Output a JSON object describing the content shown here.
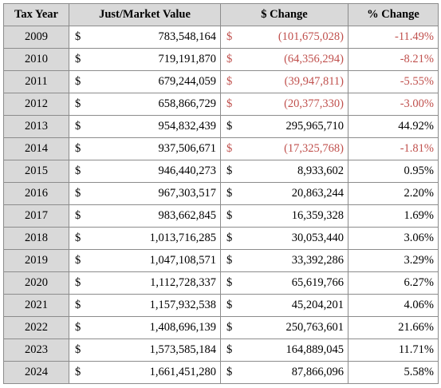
{
  "headers": {
    "year": "Tax Year",
    "value": "Just/Market Value",
    "change": "$ Change",
    "pct": "% Change"
  },
  "currency_symbol": "$",
  "colors": {
    "negative": "#c0504d",
    "header_bg": "#d9d9d9"
  },
  "rows": [
    {
      "year": "2009",
      "value": "783,548,164",
      "change": "(101,675,028)",
      "pct": "-11.49%",
      "negative": true
    },
    {
      "year": "2010",
      "value": "719,191,870",
      "change": "(64,356,294)",
      "pct": "-8.21%",
      "negative": true
    },
    {
      "year": "2011",
      "value": "679,244,059",
      "change": "(39,947,811)",
      "pct": "-5.55%",
      "negative": true
    },
    {
      "year": "2012",
      "value": "658,866,729",
      "change": "(20,377,330)",
      "pct": "-3.00%",
      "negative": true
    },
    {
      "year": "2013",
      "value": "954,832,439",
      "change": "295,965,710",
      "pct": "44.92%",
      "negative": false
    },
    {
      "year": "2014",
      "value": "937,506,671",
      "change": "(17,325,768)",
      "pct": "-1.81%",
      "negative": true
    },
    {
      "year": "2015",
      "value": "946,440,273",
      "change": "8,933,602",
      "pct": "0.95%",
      "negative": false
    },
    {
      "year": "2016",
      "value": "967,303,517",
      "change": "20,863,244",
      "pct": "2.20%",
      "negative": false
    },
    {
      "year": "2017",
      "value": "983,662,845",
      "change": "16,359,328",
      "pct": "1.69%",
      "negative": false
    },
    {
      "year": "2018",
      "value": "1,013,716,285",
      "change": "30,053,440",
      "pct": "3.06%",
      "negative": false
    },
    {
      "year": "2019",
      "value": "1,047,108,571",
      "change": "33,392,286",
      "pct": "3.29%",
      "negative": false
    },
    {
      "year": "2020",
      "value": "1,112,728,337",
      "change": "65,619,766",
      "pct": "6.27%",
      "negative": false
    },
    {
      "year": "2021",
      "value": "1,157,932,538",
      "change": "45,204,201",
      "pct": "4.06%",
      "negative": false
    },
    {
      "year": "2022",
      "value": "1,408,696,139",
      "change": "250,763,601",
      "pct": "21.66%",
      "negative": false
    },
    {
      "year": "2023",
      "value": "1,573,585,184",
      "change": "164,889,045",
      "pct": "11.71%",
      "negative": false
    },
    {
      "year": "2024",
      "value": "1,661,451,280",
      "change": "87,866,096",
      "pct": "5.58%",
      "negative": false
    }
  ]
}
